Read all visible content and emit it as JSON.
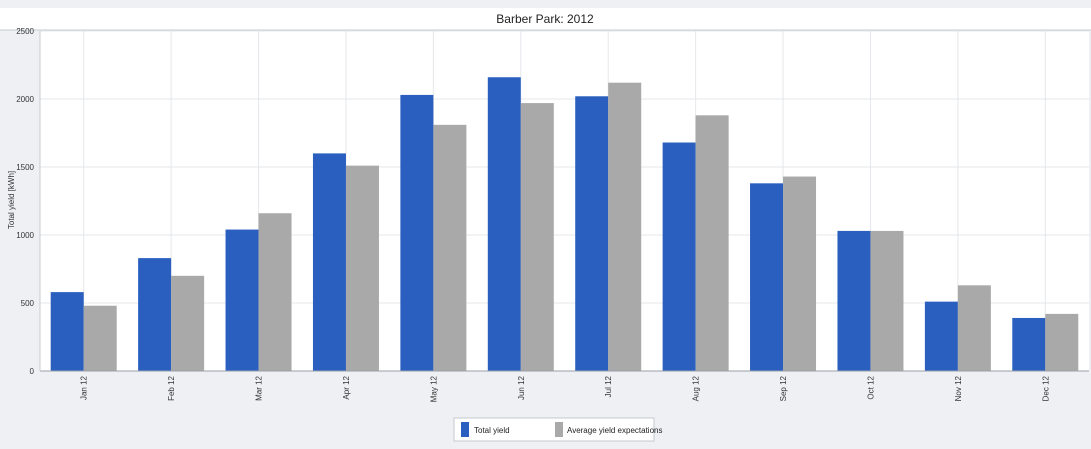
{
  "chart_data": {
    "type": "bar",
    "title": "Barber Park: 2012",
    "xlabel": "",
    "ylabel": "Total yield [kWh]",
    "ylim": [
      0,
      2500
    ],
    "yticks": [
      "0",
      "500",
      "1000",
      "1500",
      "2000",
      "2500"
    ],
    "categories": [
      "Jan 12",
      "Feb 12",
      "Mar 12",
      "Apr 12",
      "May 12",
      "Jun 12",
      "Jul 12",
      "Aug 12",
      "Sep 12",
      "Oct 12",
      "Nov 12",
      "Dec 12"
    ],
    "series": [
      {
        "name": "Total yield",
        "color": "#2a5fbf",
        "values": [
          580,
          830,
          1040,
          1600,
          2030,
          2160,
          2020,
          1680,
          1380,
          1030,
          510,
          390
        ]
      },
      {
        "name": "Average yield expectations",
        "color": "#a9a9a9",
        "values": [
          480,
          700,
          1160,
          1510,
          1810,
          1970,
          2120,
          1880,
          1430,
          1030,
          630,
          420
        ]
      }
    ],
    "grid": true,
    "legend_position": "bottom-center"
  }
}
